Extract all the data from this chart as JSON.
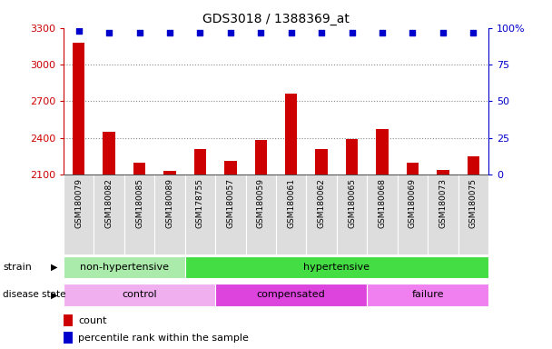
{
  "title": "GDS3018 / 1388369_at",
  "samples": [
    "GSM180079",
    "GSM180082",
    "GSM180085",
    "GSM180089",
    "GSM178755",
    "GSM180057",
    "GSM180059",
    "GSM180061",
    "GSM180062",
    "GSM180065",
    "GSM180068",
    "GSM180069",
    "GSM180073",
    "GSM180075"
  ],
  "counts": [
    3180,
    2450,
    2200,
    2130,
    2310,
    2210,
    2380,
    2760,
    2310,
    2390,
    2470,
    2200,
    2140,
    2250
  ],
  "percentile_ranks": [
    98,
    97,
    97,
    97,
    97,
    97,
    97,
    97,
    97,
    97,
    97,
    97,
    97,
    97
  ],
  "ylim_left": [
    2100,
    3300
  ],
  "ylim_right": [
    0,
    100
  ],
  "yticks_left": [
    2100,
    2400,
    2700,
    3000,
    3300
  ],
  "yticks_right": [
    0,
    25,
    50,
    75,
    100
  ],
  "strain_groups": [
    {
      "label": "non-hypertensive",
      "start": 0,
      "end": 4,
      "color": "#aaeaaa"
    },
    {
      "label": "hypertensive",
      "start": 4,
      "end": 14,
      "color": "#44dd44"
    }
  ],
  "disease_groups": [
    {
      "label": "control",
      "start": 0,
      "end": 5,
      "color": "#f0a0f0"
    },
    {
      "label": "compensated",
      "start": 5,
      "end": 10,
      "color": "#dd44dd"
    },
    {
      "label": "failure",
      "start": 10,
      "end": 14,
      "color": "#f080f0"
    }
  ],
  "bar_color": "#cc0000",
  "dot_color": "#0000cc",
  "axis_left_color": "#cc0000",
  "axis_right_color": "#0000cc",
  "grid_color": "#888888",
  "background_color": "#ffffff",
  "tick_bg_color": "#cccccc",
  "label_area_color": "#dddddd"
}
